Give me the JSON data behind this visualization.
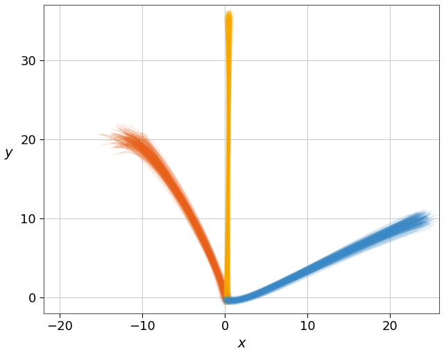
{
  "title": "",
  "xlabel": "x",
  "ylabel": "y",
  "xlim": [
    -22,
    26
  ],
  "ylim": [
    -2,
    37
  ],
  "background_color": "#ffffff",
  "grid_color": "#cccccc",
  "n_trajectories": 200,
  "orange_color": "#E8611A",
  "yellow_color": "#F5A800",
  "blue_color": "#3A88C5",
  "alpha": 0.12,
  "linewidth": 1.5,
  "xticks": [
    -20,
    -10,
    0,
    10,
    20
  ],
  "yticks": [
    0,
    10,
    20,
    30
  ],
  "font_size": 14
}
